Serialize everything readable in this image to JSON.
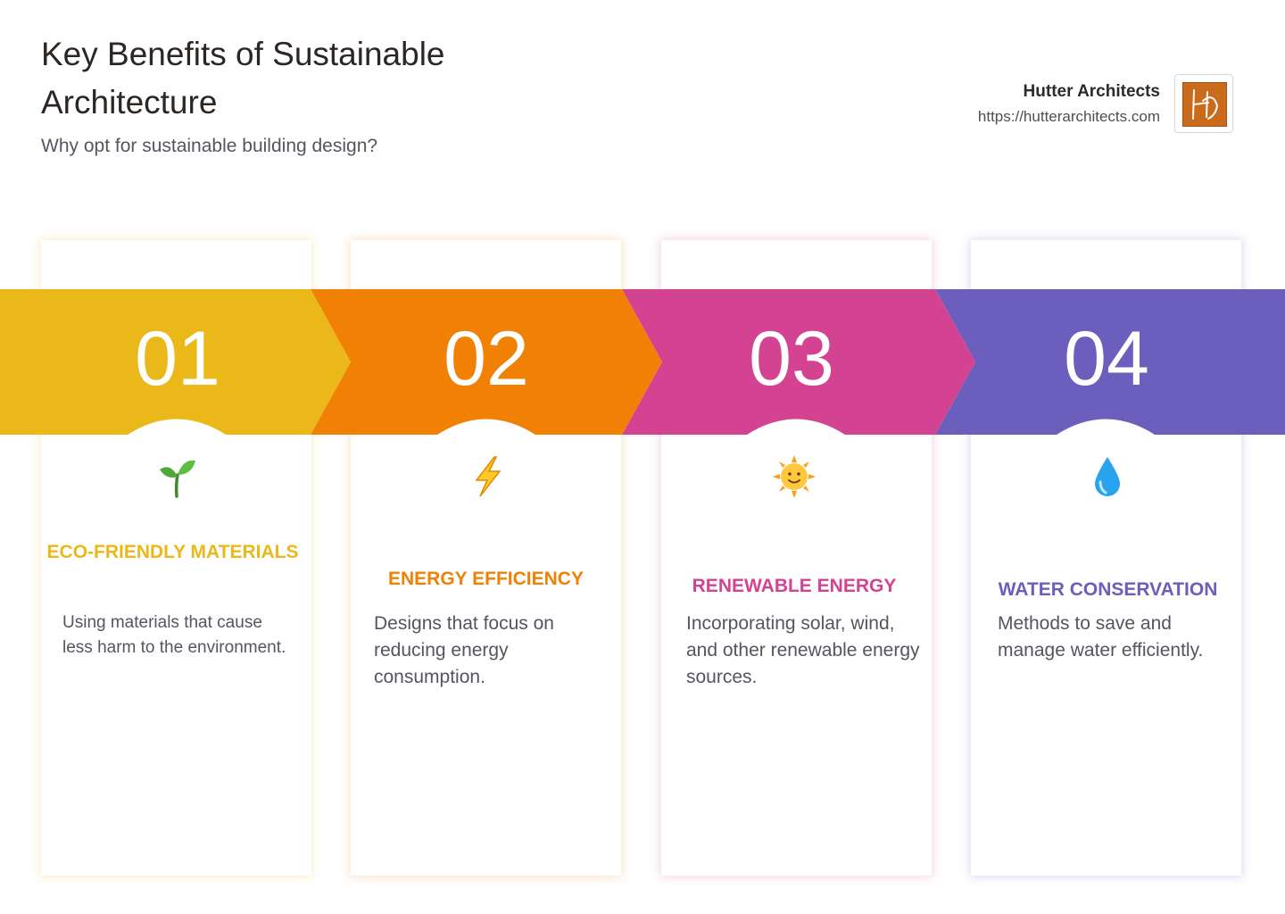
{
  "header": {
    "title": "Key Benefits of Sustainable Architecture",
    "subtitle": "Why opt for sustainable building design?"
  },
  "brand": {
    "name": "Hutter Architects",
    "url": "https://hutterarchitects.com",
    "logo_icon": "hutter-architects-logo",
    "logo_letters": "HA"
  },
  "steps": [
    {
      "number": "01",
      "heading": "ECO-FRIENDLY MATERIALS",
      "description": "Using materials that cause less harm to the environment.",
      "icon": "seedling-icon",
      "color": "#ebb81a"
    },
    {
      "number": "02",
      "heading": "ENERGY EFFICIENCY",
      "description": "Designs that focus on reducing energy consumption.",
      "icon": "lightning-bolt-icon",
      "color": "#f08105"
    },
    {
      "number": "03",
      "heading": "RENEWABLE ENERGY",
      "description": "Incorporating solar, wind, and other renewable energy sources.",
      "icon": "sun-icon",
      "color": "#d44392"
    },
    {
      "number": "04",
      "heading": "WATER CONSERVATION",
      "description": "Methods to save and manage water efficiently.",
      "icon": "water-drop-icon",
      "color": "#6b5ebd"
    }
  ]
}
